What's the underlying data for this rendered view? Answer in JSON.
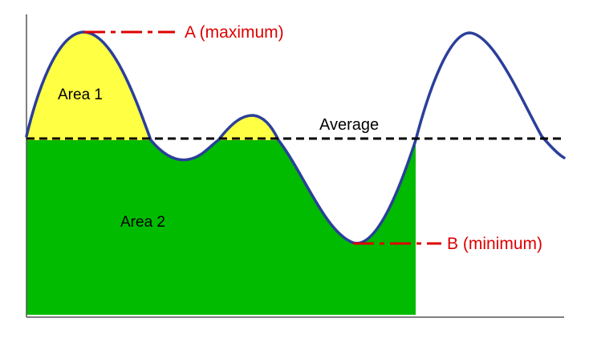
{
  "labels": {
    "maximum": "A (maximum)",
    "minimum": "B (minimum)",
    "average": "Average",
    "area1": "Area 1",
    "area2": "Area 2"
  },
  "colors": {
    "curve": "#2b3f9a",
    "area1_fill": "#ffff44",
    "area2_fill": "#00bb00",
    "average_line": "#000000",
    "marker_lines": "#dd0000",
    "marker_text": "#dd0000",
    "axes": "#555555"
  }
}
